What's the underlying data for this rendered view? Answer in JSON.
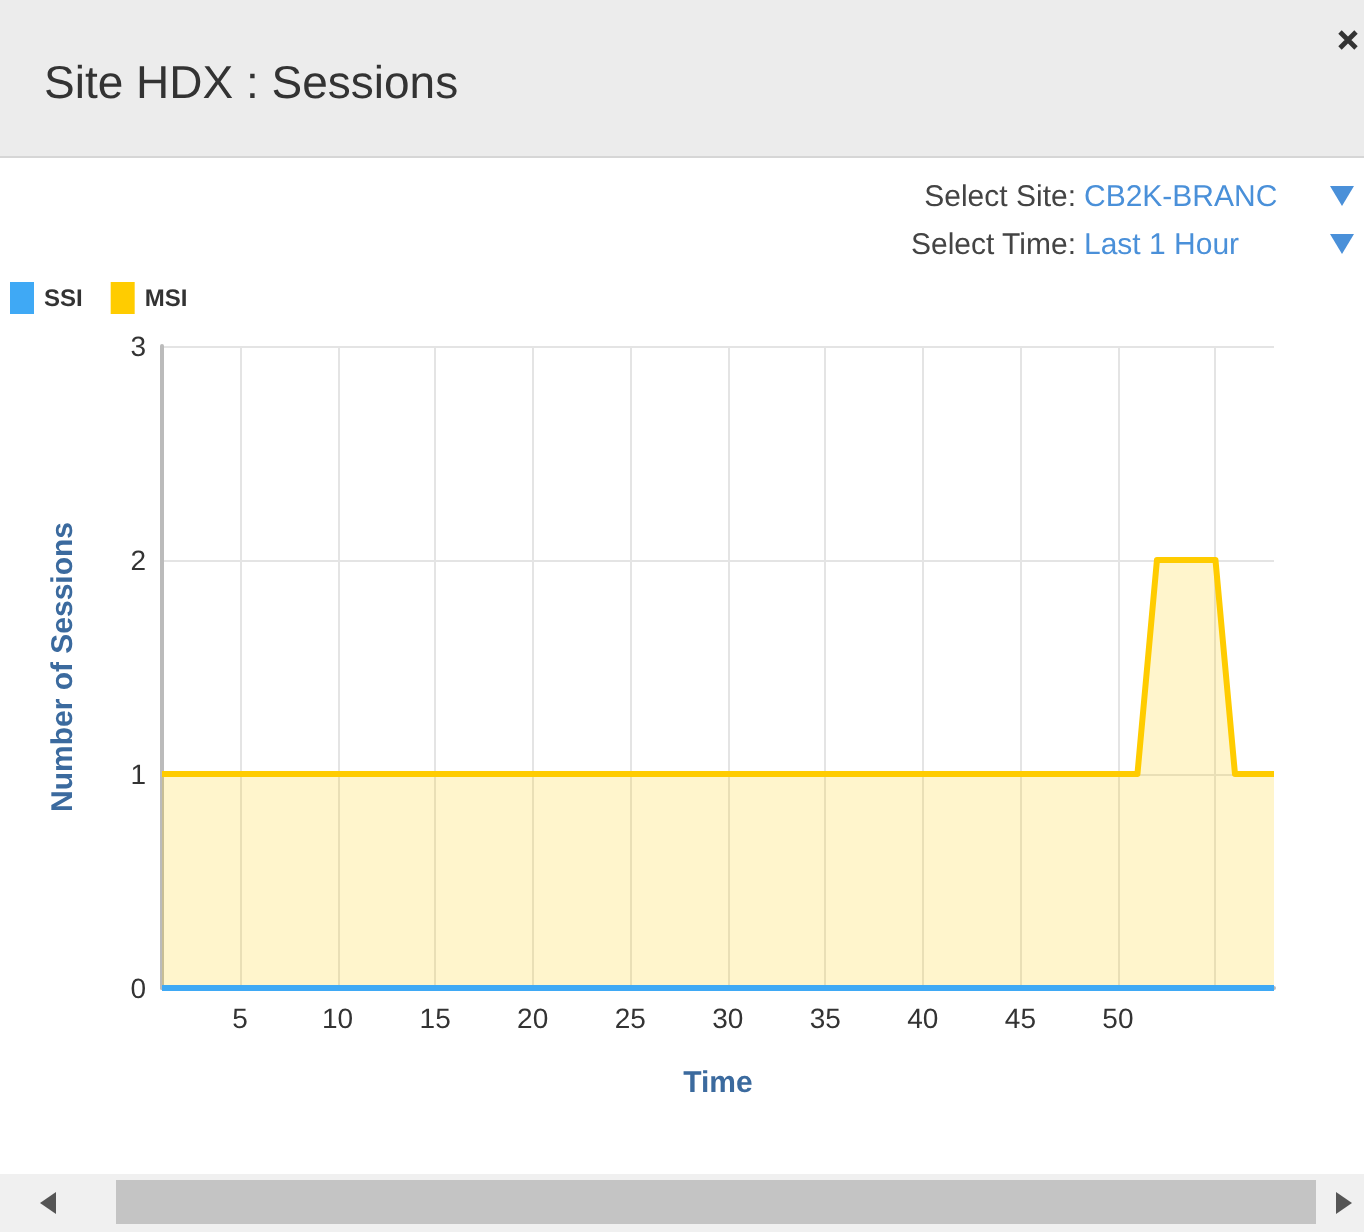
{
  "chart_data": {
    "type": "area",
    "title": "Site HDX : Sessions",
    "xlabel": "Time",
    "ylabel": "Number of Sessions",
    "annotations": [
      "Select Site:",
      "CB2K-BRANC",
      "Select Time:",
      "Last 1 Hour"
    ],
    "series": [
      {
        "name": "SSI",
        "type": "line",
        "color": "#3fa9f5",
        "x": [
          1,
          58
        ],
        "values": [
          0,
          0
        ]
      },
      {
        "name": "MSI",
        "color": "#ffcc00",
        "x": [
          1,
          51,
          52,
          55,
          56,
          58
        ],
        "values": [
          1,
          1,
          2,
          2,
          1,
          1
        ]
      }
    ],
    "xlim": [
      1,
      58
    ],
    "xticks": [
      5,
      10,
      15,
      20,
      25,
      30,
      35,
      40,
      45,
      50,
      {
        "value": 55,
        "label": null
      }
    ],
    "ylim": [
      0,
      3
    ],
    "yticks": [
      0,
      1,
      2,
      3
    ],
    "grid": true,
    "legend": "top left",
    "marker": "none",
    "line_style": "solid"
  }
}
